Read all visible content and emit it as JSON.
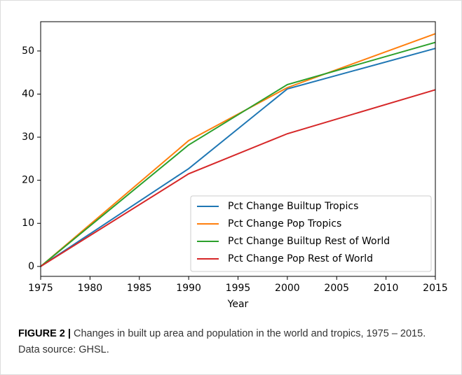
{
  "chart_data": {
    "type": "line",
    "x": [
      1975,
      1990,
      2000,
      2015
    ],
    "series": [
      {
        "name": "Pct Change Builtup Tropics",
        "color": "#1f77b4",
        "values": [
          0,
          22.7,
          41.2,
          50.6
        ]
      },
      {
        "name": "Pct Change Pop Tropics",
        "color": "#ff7f0e",
        "values": [
          0,
          29.2,
          41.5,
          54.0
        ]
      },
      {
        "name": "Pct Change Builtup Rest of World",
        "color": "#2ca02c",
        "values": [
          0,
          28.2,
          42.2,
          52.0
        ]
      },
      {
        "name": "Pct Change Pop Rest of World",
        "color": "#d62728",
        "values": [
          0,
          21.5,
          30.8,
          41.0
        ]
      }
    ],
    "xlabel": "Year",
    "xlim": [
      1975,
      2015
    ],
    "xticks": [
      1975,
      1980,
      1985,
      1990,
      1995,
      2000,
      2005,
      2010,
      2015
    ],
    "ylim": [
      -2.3,
      56.8
    ],
    "yticks": [
      0,
      10,
      20,
      30,
      40,
      50
    ],
    "legend": "lower right"
  },
  "caption": {
    "label": "FIGURE 2 |",
    "text": "Changes in built up area and population in the world and tropics, 1975 – 2015. Data source: GHSL."
  }
}
